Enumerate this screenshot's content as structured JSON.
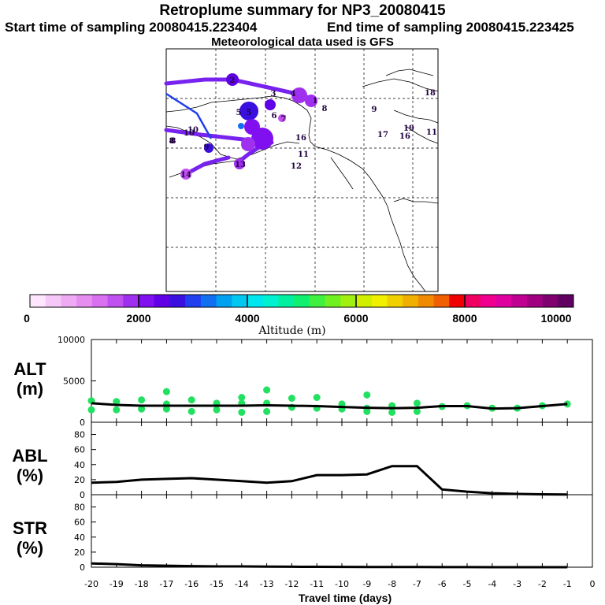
{
  "header": {
    "title": "Retroplume summary for NP3_20080415",
    "start": "Start time of sampling 20080415.223404",
    "end": "End time of sampling 20080415.223425",
    "met": "Meteorological data used is GFS"
  },
  "colorbar": {
    "label": "Altitude (m)",
    "ticks": [
      "0",
      "2000",
      "4000",
      "6000",
      "8000",
      "10000"
    ],
    "colors": [
      "#ffe6ff",
      "#f5c8f8",
      "#eeaaf2",
      "#e68ef0",
      "#d870f0",
      "#c050f0",
      "#a030f0",
      "#8010f0",
      "#6000e6",
      "#3a10e0",
      "#2040f0",
      "#1070f0",
      "#00a0f0",
      "#00c8f0",
      "#00e6f0",
      "#00f0d0",
      "#00f0a0",
      "#10f070",
      "#40f040",
      "#70f020",
      "#a0f010",
      "#d0f000",
      "#f0f000",
      "#f0d000",
      "#f0b000",
      "#f08a00",
      "#f06000",
      "#f00000",
      "#f00060",
      "#f00090",
      "#e000a0",
      "#c00090",
      "#a00080",
      "#800070",
      "#600060"
    ],
    "panel_colors": {
      "line": "#000000",
      "dot": "#22e060",
      "path": "#7722ee"
    }
  },
  "map": {
    "labels": [
      "2",
      "3",
      "4",
      "1",
      "5",
      "6",
      "7",
      "8",
      "9",
      "10",
      "11",
      "12",
      "13",
      "14",
      "15",
      "16",
      "17",
      "18",
      "19"
    ],
    "visible_labels": [
      {
        "t": "2"
      },
      {
        "t": "3"
      },
      {
        "t": "4"
      },
      {
        "t": "1"
      },
      {
        "t": "5"
      },
      {
        "t": "5"
      },
      {
        "t": "6"
      },
      {
        "t": "7"
      },
      {
        "t": "8"
      },
      {
        "t": "9"
      },
      {
        "t": "10"
      },
      {
        "t": "8"
      },
      {
        "t": "9"
      },
      {
        "t": "10"
      },
      {
        "t": "11"
      },
      {
        "t": "12"
      },
      {
        "t": "13"
      },
      {
        "t": "14"
      },
      {
        "t": "16"
      },
      {
        "t": "17"
      },
      {
        "t": "18"
      },
      {
        "t": "11"
      },
      {
        "t": "19"
      },
      {
        "t": "16"
      },
      {
        "t": "8"
      }
    ]
  },
  "chart_data": [
    {
      "type": "line",
      "panel": "ALT",
      "ylabel": "ALT",
      "yunit": "(m)",
      "ylim": [
        0,
        10000
      ],
      "yticks": [
        "10000",
        "5000",
        "0"
      ],
      "x": [
        -20,
        -19,
        -18,
        -17,
        -16,
        -15,
        -14,
        -13,
        -12,
        -11,
        -10,
        -9,
        -8,
        -7,
        -6,
        -5,
        -4,
        -3,
        -2,
        -1
      ],
      "values": [
        2300,
        2100,
        2000,
        2000,
        2000,
        2000,
        2000,
        2050,
        2000,
        1950,
        1850,
        1750,
        1700,
        1750,
        1950,
        1950,
        1650,
        1700,
        1950,
        2200
      ],
      "scatter": [
        {
          "x": -20,
          "y": 2600
        },
        {
          "x": -20,
          "y": 1500
        },
        {
          "x": -19,
          "y": 2500
        },
        {
          "x": -19,
          "y": 1500
        },
        {
          "x": -18,
          "y": 2700
        },
        {
          "x": -18,
          "y": 1600
        },
        {
          "x": -17,
          "y": 3700
        },
        {
          "x": -17,
          "y": 2200
        },
        {
          "x": -17,
          "y": 1600
        },
        {
          "x": -16,
          "y": 2700
        },
        {
          "x": -16,
          "y": 1300
        },
        {
          "x": -15,
          "y": 2300
        },
        {
          "x": -15,
          "y": 1500
        },
        {
          "x": -14,
          "y": 3000
        },
        {
          "x": -14,
          "y": 2300
        },
        {
          "x": -14,
          "y": 1200
        },
        {
          "x": -13,
          "y": 3900
        },
        {
          "x": -13,
          "y": 2300
        },
        {
          "x": -13,
          "y": 1300
        },
        {
          "x": -12,
          "y": 2900
        },
        {
          "x": -12,
          "y": 1800
        },
        {
          "x": -11,
          "y": 3000
        },
        {
          "x": -11,
          "y": 1700
        },
        {
          "x": -10,
          "y": 2200
        },
        {
          "x": -10,
          "y": 1600
        },
        {
          "x": -9,
          "y": 3300
        },
        {
          "x": -9,
          "y": 1700
        },
        {
          "x": -9,
          "y": 1300
        },
        {
          "x": -8,
          "y": 2000
        },
        {
          "x": -8,
          "y": 1200
        },
        {
          "x": -7,
          "y": 2300
        },
        {
          "x": -7,
          "y": 1300
        },
        {
          "x": -6,
          "y": 1900
        },
        {
          "x": -5,
          "y": 2000
        },
        {
          "x": -4,
          "y": 1700
        },
        {
          "x": -3,
          "y": 1700
        },
        {
          "x": -2,
          "y": 2000
        },
        {
          "x": -1,
          "y": 2200
        }
      ]
    },
    {
      "type": "line",
      "panel": "ABL",
      "ylabel": "ABL",
      "yunit": "(%)",
      "ylim": [
        0,
        90
      ],
      "yticks": [
        "80",
        "60",
        "40",
        "20",
        "0"
      ],
      "x": [
        -20,
        -19,
        -18,
        -17,
        -16,
        -15,
        -14,
        -13,
        -12,
        -11,
        -10,
        -9,
        -8,
        -7,
        -6,
        -5,
        -4,
        -3,
        -2,
        -1
      ],
      "values": [
        16,
        17,
        20,
        21,
        22,
        20,
        18,
        16,
        18,
        26,
        26,
        27,
        38,
        38,
        7,
        4,
        2,
        1,
        0.5,
        0.2
      ]
    },
    {
      "type": "line",
      "panel": "STR",
      "ylabel": "STR",
      "yunit": "(%)",
      "ylim": [
        0,
        90
      ],
      "yticks": [
        "80",
        "60",
        "40",
        "20",
        "0"
      ],
      "x": [
        -20,
        -19,
        -18,
        -17,
        -16,
        -15,
        -14,
        -13,
        -12,
        -11,
        -10,
        -9,
        -8,
        -7,
        -6,
        -5,
        -4,
        -3,
        -2,
        -1
      ],
      "values": [
        5,
        4,
        2.5,
        2,
        1.5,
        1,
        1,
        0.8,
        0.6,
        0.5,
        0.4,
        0.3,
        0.2,
        0.2,
        0.1,
        0.1,
        0.05,
        0,
        0,
        0
      ]
    },
    {
      "type": "axis",
      "xlabel": "Travel time (days)",
      "xlim": [
        -20,
        0
      ],
      "xticks": [
        "-20",
        "-19",
        "-18",
        "-17",
        "-16",
        "-15",
        "-14",
        "-13",
        "-12",
        "-11",
        "-10",
        "-9",
        "-8",
        "-7",
        "-6",
        "-5",
        "-4",
        "-3",
        "-2",
        "-1",
        "0"
      ]
    }
  ]
}
